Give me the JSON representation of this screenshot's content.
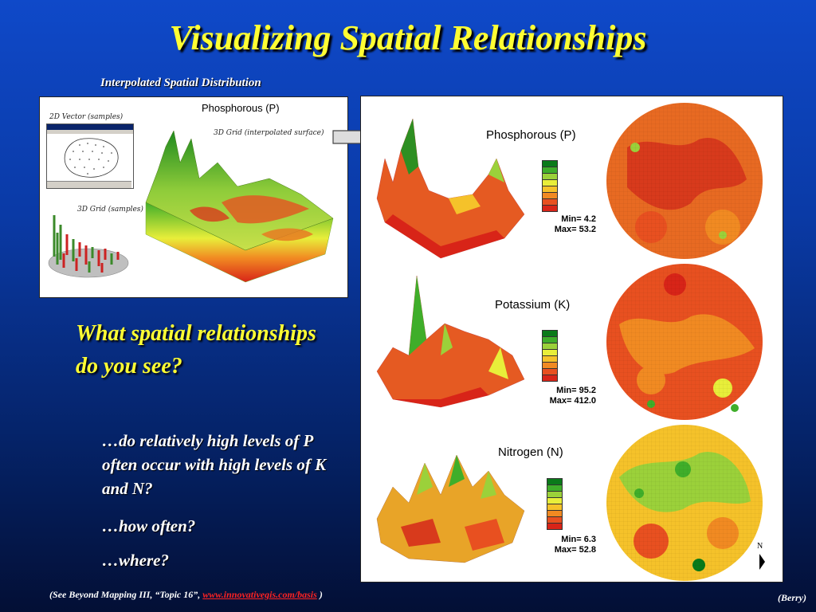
{
  "title": "Visualizing Spatial Relationships",
  "subtitle": "Interpolated Spatial Distribution",
  "left_panel": {
    "heading": "Phosphorous (P)",
    "labels": {
      "vector": "2D Vector (samples)",
      "grid_samples": "3D Grid (samples)",
      "grid_surface": "3D Grid (interpolated surface)"
    }
  },
  "right_panel": {
    "maps": [
      {
        "name": "Phosphorous (P)",
        "min": "Min= 4.2",
        "max": "Max= 53.2"
      },
      {
        "name": "Potassium (K)",
        "min": "Min= 95.2",
        "max": "Max= 412.0"
      },
      {
        "name": "Nitrogen (N)",
        "min": "Min= 6.3",
        "max": "Max= 52.8"
      }
    ],
    "north_label": "N"
  },
  "question": "What spatial relationships do you see?",
  "sub_points": [
    "…do relatively high levels of P often occur with high levels of K and N?",
    "…how often?",
    "…where?"
  ],
  "footer": {
    "prefix": "(See Beyond Mapping III, “Topic 16”,",
    "link": "www.innovativegis.com/basis",
    "suffix": ")"
  },
  "credit": "(Berry)",
  "colors": {
    "title": "#ffff33",
    "ramp": [
      "#0a7a1a",
      "#3fae2a",
      "#9bd13a",
      "#e8ee3a",
      "#f5c22a",
      "#f18a22",
      "#e85020",
      "#d82418"
    ]
  }
}
